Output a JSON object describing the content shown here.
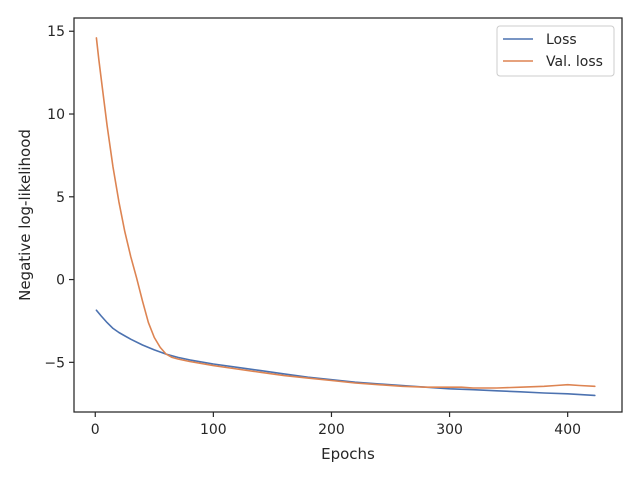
{
  "chart_data": {
    "type": "line",
    "xlabel": "Epochs",
    "ylabel": "Negative log-likelihood",
    "xlim": [
      -18,
      446
    ],
    "ylim": [
      -8.0,
      15.8
    ],
    "xticks": [
      0,
      100,
      200,
      300,
      400
    ],
    "yticks": [
      -5,
      0,
      5,
      10,
      15
    ],
    "ytick_labels": [
      "−5",
      "0",
      "5",
      "10",
      "15"
    ],
    "grid": false,
    "legend": {
      "position": "top-right"
    },
    "series": [
      {
        "name": "Loss",
        "color": "#4c72b0",
        "points": [
          [
            1,
            -1.85
          ],
          [
            5,
            -2.2
          ],
          [
            10,
            -2.6
          ],
          [
            15,
            -2.95
          ],
          [
            20,
            -3.2
          ],
          [
            30,
            -3.6
          ],
          [
            40,
            -3.95
          ],
          [
            50,
            -4.25
          ],
          [
            60,
            -4.5
          ],
          [
            70,
            -4.7
          ],
          [
            80,
            -4.85
          ],
          [
            100,
            -5.1
          ],
          [
            120,
            -5.3
          ],
          [
            140,
            -5.5
          ],
          [
            160,
            -5.7
          ],
          [
            180,
            -5.9
          ],
          [
            200,
            -6.05
          ],
          [
            220,
            -6.2
          ],
          [
            240,
            -6.3
          ],
          [
            260,
            -6.4
          ],
          [
            280,
            -6.5
          ],
          [
            300,
            -6.6
          ],
          [
            320,
            -6.65
          ],
          [
            340,
            -6.72
          ],
          [
            360,
            -6.78
          ],
          [
            380,
            -6.85
          ],
          [
            400,
            -6.9
          ],
          [
            423,
            -7.0
          ]
        ]
      },
      {
        "name": "Val. loss",
        "color": "#dd8452",
        "points": [
          [
            1,
            14.6
          ],
          [
            3,
            13.3
          ],
          [
            6,
            11.6
          ],
          [
            10,
            9.3
          ],
          [
            15,
            6.8
          ],
          [
            20,
            4.7
          ],
          [
            25,
            2.9
          ],
          [
            30,
            1.4
          ],
          [
            35,
            0.1
          ],
          [
            40,
            -1.3
          ],
          [
            45,
            -2.6
          ],
          [
            50,
            -3.5
          ],
          [
            55,
            -4.1
          ],
          [
            60,
            -4.5
          ],
          [
            65,
            -4.7
          ],
          [
            70,
            -4.8
          ],
          [
            80,
            -4.95
          ],
          [
            100,
            -5.2
          ],
          [
            120,
            -5.4
          ],
          [
            140,
            -5.6
          ],
          [
            160,
            -5.8
          ],
          [
            180,
            -5.95
          ],
          [
            200,
            -6.1
          ],
          [
            220,
            -6.25
          ],
          [
            240,
            -6.35
          ],
          [
            260,
            -6.45
          ],
          [
            280,
            -6.5
          ],
          [
            300,
            -6.5
          ],
          [
            310,
            -6.5
          ],
          [
            320,
            -6.55
          ],
          [
            340,
            -6.55
          ],
          [
            360,
            -6.5
          ],
          [
            380,
            -6.45
          ],
          [
            390,
            -6.4
          ],
          [
            400,
            -6.35
          ],
          [
            410,
            -6.4
          ],
          [
            423,
            -6.45
          ]
        ]
      }
    ]
  }
}
